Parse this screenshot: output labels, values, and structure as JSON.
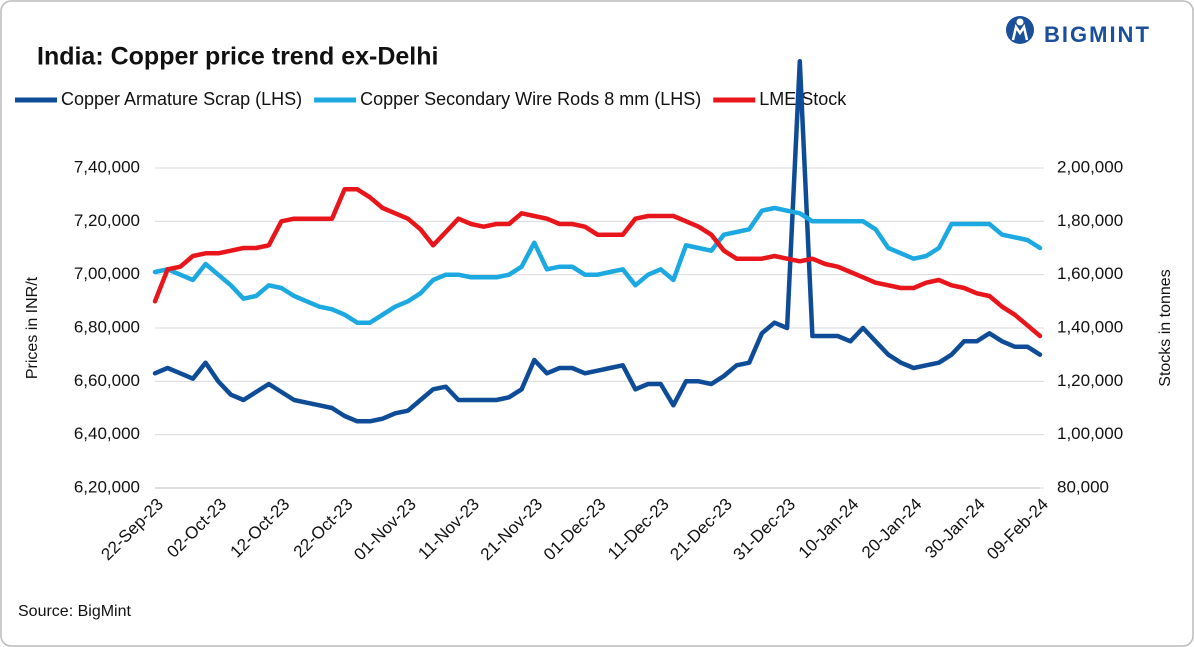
{
  "logo": "BIGMINT",
  "source": "Source: BigMint",
  "chart_data": {
    "type": "line",
    "title": "India: Copper price trend ex-Delhi",
    "ylabel": "Prices in INR/t",
    "y2label": "Stocks in tonnes",
    "x": [
      "22-Sep-23",
      null,
      null,
      null,
      null,
      "02-Oct-23",
      null,
      null,
      null,
      null,
      "12-Oct-23",
      null,
      null,
      null,
      null,
      "22-Oct-23",
      null,
      null,
      null,
      null,
      "01-Nov-23",
      null,
      null,
      null,
      null,
      "11-Nov-23",
      null,
      null,
      null,
      null,
      "21-Nov-23",
      null,
      null,
      null,
      null,
      "01-Dec-23",
      null,
      null,
      null,
      null,
      "11-Dec-23",
      null,
      null,
      null,
      null,
      "21-Dec-23",
      null,
      null,
      null,
      null,
      "31-Dec-23",
      null,
      null,
      null,
      null,
      "10-Jan-24",
      null,
      null,
      null,
      null,
      "20-Jan-24",
      null,
      null,
      null,
      null,
      "30-Jan-24",
      null,
      null,
      null,
      null,
      "09-Feb-24"
    ],
    "ylim": [
      620000,
      740000
    ],
    "yticks": [
      {
        "value": 620000,
        "label": "6,20,000"
      },
      {
        "value": 640000,
        "label": "6,40,000"
      },
      {
        "value": 660000,
        "label": "6,60,000"
      },
      {
        "value": 680000,
        "label": "6,80,000"
      },
      {
        "value": 700000,
        "label": "7,00,000"
      },
      {
        "value": 720000,
        "label": "7,20,000"
      },
      {
        "value": 740000,
        "label": "7,40,000"
      }
    ],
    "y2lim": [
      80000,
      200000
    ],
    "y2ticks": [
      {
        "value": 80000,
        "label": "80,000"
      },
      {
        "value": 100000,
        "label": "1,00,000"
      },
      {
        "value": 120000,
        "label": "1,20,000"
      },
      {
        "value": 140000,
        "label": "1,40,000"
      },
      {
        "value": 160000,
        "label": "1,60,000"
      },
      {
        "value": 180000,
        "label": "1,80,000"
      },
      {
        "value": 200000,
        "label": "2,00,000"
      }
    ],
    "grid": true,
    "legend": "top-left",
    "series": [
      {
        "name": "Copper Armature Scrap (LHS)",
        "color": "#0f4c97",
        "values": [
          663000,
          665000,
          663000,
          661000,
          667000,
          660000,
          655000,
          653000,
          656000,
          659000,
          656000,
          653000,
          652000,
          651000,
          650000,
          647000,
          645000,
          645000,
          646000,
          648000,
          649000,
          653000,
          657000,
          658000,
          653000,
          653000,
          653000,
          653000,
          654000,
          657000,
          668000,
          663000,
          665000,
          665000,
          663000,
          664000,
          665000,
          666000,
          657000,
          659000,
          659000,
          651000,
          660000,
          660000,
          659000,
          662000,
          666000,
          667000,
          678000,
          682000,
          680000,
          780000,
          677000,
          677000,
          677000,
          675000,
          680000,
          675000,
          670000,
          667000,
          665000,
          666000,
          667000,
          670000,
          675000,
          675000,
          678000,
          675000,
          673000,
          673000,
          670000
        ]
      },
      {
        "name": "Copper Secondary Wire Rods 8 mm (LHS)",
        "color": "#1ca8e0",
        "values": [
          701000,
          702000,
          700000,
          698000,
          704000,
          700000,
          696000,
          691000,
          692000,
          696000,
          695000,
          692000,
          690000,
          688000,
          687000,
          685000,
          682000,
          682000,
          685000,
          688000,
          690000,
          693000,
          698000,
          700000,
          700000,
          699000,
          699000,
          699000,
          700000,
          703000,
          712000,
          702000,
          703000,
          703000,
          700000,
          700000,
          701000,
          702000,
          696000,
          700000,
          702000,
          698000,
          711000,
          710000,
          709000,
          715000,
          716000,
          717000,
          724000,
          725000,
          724000,
          723000,
          720000,
          720000,
          720000,
          720000,
          720000,
          717000,
          710000,
          708000,
          706000,
          707000,
          710000,
          719000,
          719000,
          719000,
          719000,
          715000,
          714000,
          713000,
          710000
        ]
      },
      {
        "name": "LME Stock",
        "color": "#e8151b",
        "axis": "y2",
        "values": [
          150000,
          162000,
          163000,
          167000,
          168000,
          168000,
          169000,
          170000,
          170000,
          171000,
          180000,
          181000,
          181000,
          181000,
          181000,
          192000,
          192000,
          189000,
          185000,
          183000,
          181000,
          177000,
          171000,
          176000,
          181000,
          179000,
          178000,
          179000,
          179000,
          183000,
          182000,
          181000,
          179000,
          179000,
          178000,
          175000,
          175000,
          175000,
          181000,
          182000,
          182000,
          182000,
          180000,
          178000,
          175000,
          169000,
          166000,
          166000,
          166000,
          167000,
          166000,
          165000,
          166000,
          164000,
          163000,
          161000,
          159000,
          157000,
          156000,
          155000,
          155000,
          157000,
          158000,
          156000,
          155000,
          153000,
          152000,
          148000,
          145000,
          141000,
          137000
        ]
      }
    ]
  }
}
